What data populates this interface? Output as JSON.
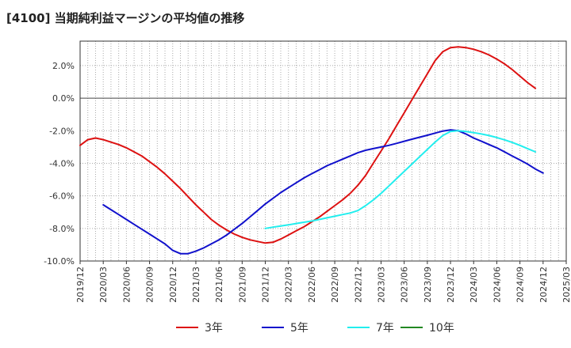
{
  "title": "[4100]  当期純利益マージンの平均値の推移",
  "chart_data": {
    "type": "line",
    "title": "[4100]  当期純利益マージンの平均値の推移",
    "xlabel": "",
    "ylabel": "",
    "x_range": [
      "2019-12",
      "2025-03"
    ],
    "ylim": [
      -10,
      3.5
    ],
    "grid": true,
    "legend_position": "bottom",
    "x_ticks": [
      "2019/12",
      "2020/03",
      "2020/06",
      "2020/09",
      "2020/12",
      "2021/03",
      "2021/06",
      "2021/09",
      "2021/12",
      "2022/03",
      "2022/06",
      "2022/09",
      "2022/12",
      "2023/03",
      "2023/06",
      "2023/09",
      "2023/12",
      "2024/03",
      "2024/06",
      "2024/09",
      "2024/12",
      "2025/03"
    ],
    "y_ticks": [
      {
        "value": 2,
        "label": "2.0%"
      },
      {
        "value": 0,
        "label": "0.0%"
      },
      {
        "value": -2,
        "label": "-2.0%"
      },
      {
        "value": -4,
        "label": "-4.0%"
      },
      {
        "value": -6,
        "label": "-6.0%"
      },
      {
        "value": -8,
        "label": "-8.0%"
      },
      {
        "value": -10,
        "label": "-10.0%"
      }
    ],
    "series": [
      {
        "name": "3年",
        "color": "#dd1111",
        "points": [
          [
            "2019-12",
            -2.9
          ],
          [
            "2020-01",
            -2.55
          ],
          [
            "2020-02",
            -2.45
          ],
          [
            "2020-03",
            -2.55
          ],
          [
            "2020-04",
            -2.7
          ],
          [
            "2020-05",
            -2.85
          ],
          [
            "2020-06",
            -3.05
          ],
          [
            "2020-07",
            -3.3
          ],
          [
            "2020-08",
            -3.55
          ],
          [
            "2020-09",
            -3.9
          ],
          [
            "2020-10",
            -4.25
          ],
          [
            "2020-11",
            -4.65
          ],
          [
            "2020-12",
            -5.1
          ],
          [
            "2021-01",
            -5.55
          ],
          [
            "2021-02",
            -6.05
          ],
          [
            "2021-03",
            -6.55
          ],
          [
            "2021-04",
            -7.0
          ],
          [
            "2021-05",
            -7.45
          ],
          [
            "2021-06",
            -7.8
          ],
          [
            "2021-07",
            -8.1
          ],
          [
            "2021-08",
            -8.35
          ],
          [
            "2021-09",
            -8.55
          ],
          [
            "2021-10",
            -8.7
          ],
          [
            "2021-11",
            -8.8
          ],
          [
            "2021-12",
            -8.9
          ],
          [
            "2022-01",
            -8.85
          ],
          [
            "2022-02",
            -8.65
          ],
          [
            "2022-03",
            -8.4
          ],
          [
            "2022-04",
            -8.15
          ],
          [
            "2022-05",
            -7.9
          ],
          [
            "2022-06",
            -7.6
          ],
          [
            "2022-07",
            -7.3
          ],
          [
            "2022-08",
            -6.95
          ],
          [
            "2022-09",
            -6.6
          ],
          [
            "2022-10",
            -6.25
          ],
          [
            "2022-11",
            -5.85
          ],
          [
            "2022-12",
            -5.35
          ],
          [
            "2023-01",
            -4.75
          ],
          [
            "2023-02",
            -4.0
          ],
          [
            "2023-03",
            -3.25
          ],
          [
            "2023-04",
            -2.5
          ],
          [
            "2023-05",
            -1.7
          ],
          [
            "2023-06",
            -0.9
          ],
          [
            "2023-07",
            -0.1
          ],
          [
            "2023-08",
            0.7
          ],
          [
            "2023-09",
            1.5
          ],
          [
            "2023-10",
            2.3
          ],
          [
            "2023-11",
            2.85
          ],
          [
            "2023-12",
            3.1
          ],
          [
            "2024-01",
            3.15
          ],
          [
            "2024-02",
            3.1
          ],
          [
            "2024-03",
            3.0
          ],
          [
            "2024-04",
            2.85
          ],
          [
            "2024-05",
            2.65
          ],
          [
            "2024-06",
            2.4
          ],
          [
            "2024-07",
            2.1
          ],
          [
            "2024-08",
            1.75
          ],
          [
            "2024-09",
            1.35
          ],
          [
            "2024-10",
            0.95
          ],
          [
            "2024-11",
            0.6
          ]
        ]
      },
      {
        "name": "5年",
        "color": "#1111cc",
        "points": [
          [
            "2020-03",
            -6.55
          ],
          [
            "2020-04",
            -6.85
          ],
          [
            "2020-05",
            -7.15
          ],
          [
            "2020-06",
            -7.45
          ],
          [
            "2020-07",
            -7.75
          ],
          [
            "2020-08",
            -8.05
          ],
          [
            "2020-09",
            -8.35
          ],
          [
            "2020-10",
            -8.65
          ],
          [
            "2020-11",
            -8.95
          ],
          [
            "2020-12",
            -9.35
          ],
          [
            "2021-01",
            -9.55
          ],
          [
            "2021-02",
            -9.55
          ],
          [
            "2021-03",
            -9.4
          ],
          [
            "2021-04",
            -9.2
          ],
          [
            "2021-05",
            -8.95
          ],
          [
            "2021-06",
            -8.7
          ],
          [
            "2021-07",
            -8.4
          ],
          [
            "2021-08",
            -8.05
          ],
          [
            "2021-09",
            -7.7
          ],
          [
            "2021-10",
            -7.3
          ],
          [
            "2021-11",
            -6.9
          ],
          [
            "2021-12",
            -6.5
          ],
          [
            "2022-01",
            -6.15
          ],
          [
            "2022-02",
            -5.8
          ],
          [
            "2022-03",
            -5.5
          ],
          [
            "2022-04",
            -5.2
          ],
          [
            "2022-05",
            -4.9
          ],
          [
            "2022-06",
            -4.65
          ],
          [
            "2022-07",
            -4.4
          ],
          [
            "2022-08",
            -4.15
          ],
          [
            "2022-09",
            -3.95
          ],
          [
            "2022-10",
            -3.75
          ],
          [
            "2022-11",
            -3.55
          ],
          [
            "2022-12",
            -3.35
          ],
          [
            "2023-01",
            -3.2
          ],
          [
            "2023-02",
            -3.1
          ],
          [
            "2023-03",
            -3.0
          ],
          [
            "2023-04",
            -2.9
          ],
          [
            "2023-05",
            -2.78
          ],
          [
            "2023-06",
            -2.65
          ],
          [
            "2023-07",
            -2.52
          ],
          [
            "2023-08",
            -2.4
          ],
          [
            "2023-09",
            -2.28
          ],
          [
            "2023-10",
            -2.15
          ],
          [
            "2023-11",
            -2.02
          ],
          [
            "2023-12",
            -1.95
          ],
          [
            "2024-01",
            -2.0
          ],
          [
            "2024-02",
            -2.2
          ],
          [
            "2024-03",
            -2.45
          ],
          [
            "2024-04",
            -2.65
          ],
          [
            "2024-05",
            -2.85
          ],
          [
            "2024-06",
            -3.05
          ],
          [
            "2024-07",
            -3.3
          ],
          [
            "2024-08",
            -3.55
          ],
          [
            "2024-09",
            -3.8
          ],
          [
            "2024-10",
            -4.05
          ],
          [
            "2024-11",
            -4.35
          ],
          [
            "2024-12",
            -4.6
          ]
        ]
      },
      {
        "name": "7年",
        "color": "#22eeee",
        "points": [
          [
            "2021-12",
            -8.0
          ],
          [
            "2022-01",
            -7.92
          ],
          [
            "2022-02",
            -7.85
          ],
          [
            "2022-03",
            -7.78
          ],
          [
            "2022-04",
            -7.7
          ],
          [
            "2022-05",
            -7.62
          ],
          [
            "2022-06",
            -7.55
          ],
          [
            "2022-07",
            -7.45
          ],
          [
            "2022-08",
            -7.35
          ],
          [
            "2022-09",
            -7.25
          ],
          [
            "2022-10",
            -7.15
          ],
          [
            "2022-11",
            -7.05
          ],
          [
            "2022-12",
            -6.9
          ],
          [
            "2023-01",
            -6.6
          ],
          [
            "2023-02",
            -6.25
          ],
          [
            "2023-03",
            -5.85
          ],
          [
            "2023-04",
            -5.4
          ],
          [
            "2023-05",
            -4.95
          ],
          [
            "2023-06",
            -4.5
          ],
          [
            "2023-07",
            -4.05
          ],
          [
            "2023-08",
            -3.6
          ],
          [
            "2023-09",
            -3.15
          ],
          [
            "2023-10",
            -2.7
          ],
          [
            "2023-11",
            -2.3
          ],
          [
            "2023-12",
            -2.05
          ],
          [
            "2024-01",
            -2.0
          ],
          [
            "2024-02",
            -2.05
          ],
          [
            "2024-03",
            -2.12
          ],
          [
            "2024-04",
            -2.2
          ],
          [
            "2024-05",
            -2.3
          ],
          [
            "2024-06",
            -2.42
          ],
          [
            "2024-07",
            -2.56
          ],
          [
            "2024-08",
            -2.72
          ],
          [
            "2024-09",
            -2.9
          ],
          [
            "2024-10",
            -3.1
          ],
          [
            "2024-11",
            -3.3
          ]
        ]
      },
      {
        "name": "10年",
        "color": "#228822",
        "points": []
      }
    ]
  }
}
